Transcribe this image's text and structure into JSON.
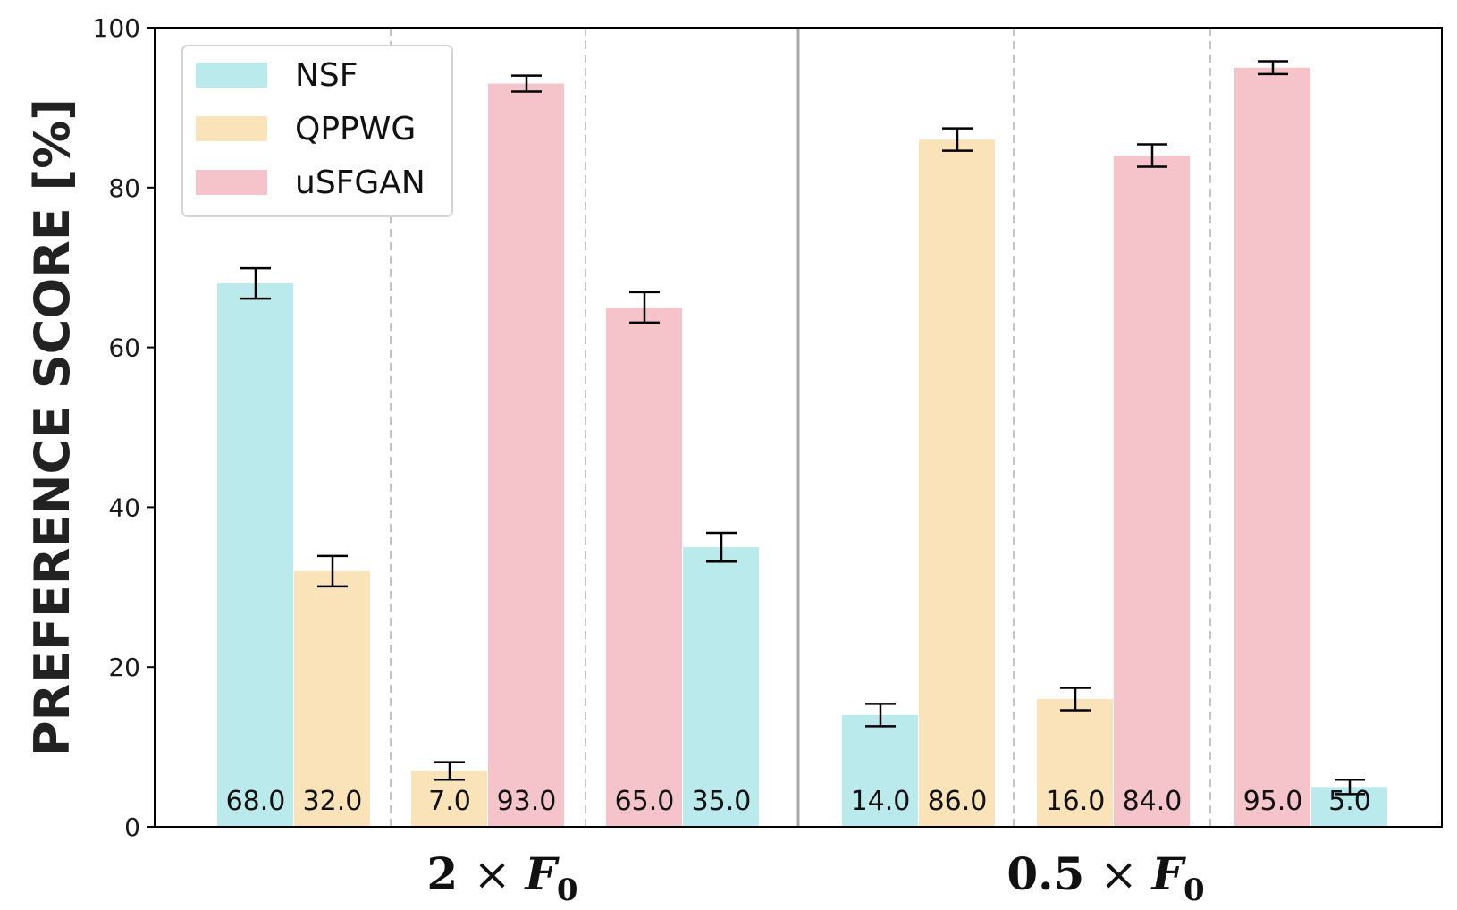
{
  "chart_data": {
    "type": "bar",
    "ylabel": "PREFERENCE SCORE [%]",
    "ylim": [
      0,
      100
    ],
    "yticks": [
      "0",
      "20",
      "40",
      "60",
      "80",
      "100"
    ],
    "grid": false,
    "legend": {
      "placement": "top-left",
      "entries": [
        {
          "name": "NSF",
          "color": "#bbeaec"
        },
        {
          "name": "QPPWG",
          "color": "#fae2b9"
        },
        {
          "name": "uSFGAN",
          "color": "#f5c3ca"
        }
      ]
    },
    "groups": [
      {
        "label_main": "2",
        "label_op": "×",
        "label_var": "F",
        "label_sub": "0",
        "comparisons": [
          {
            "bars": [
              {
                "series": "NSF",
                "value": 68.0,
                "err": 1.9,
                "label": "68.0"
              },
              {
                "series": "QPPWG",
                "value": 32.0,
                "err": 1.9,
                "label": "32.0"
              }
            ]
          },
          {
            "bars": [
              {
                "series": "QPPWG",
                "value": 7.0,
                "err": 1.1,
                "label": "7.0"
              },
              {
                "series": "uSFGAN",
                "value": 93.0,
                "err": 1.0,
                "label": "93.0"
              }
            ]
          },
          {
            "bars": [
              {
                "series": "uSFGAN",
                "value": 65.0,
                "err": 1.9,
                "label": "65.0"
              },
              {
                "series": "NSF",
                "value": 35.0,
                "err": 1.8,
                "label": "35.0"
              }
            ]
          }
        ]
      },
      {
        "label_main": "0.5",
        "label_op": "×",
        "label_var": "F",
        "label_sub": "0",
        "comparisons": [
          {
            "bars": [
              {
                "series": "NSF",
                "value": 14.0,
                "err": 1.4,
                "label": "14.0"
              },
              {
                "series": "QPPWG",
                "value": 86.0,
                "err": 1.4,
                "label": "86.0"
              }
            ]
          },
          {
            "bars": [
              {
                "series": "QPPWG",
                "value": 16.0,
                "err": 1.4,
                "label": "16.0"
              },
              {
                "series": "uSFGAN",
                "value": 84.0,
                "err": 1.4,
                "label": "84.0"
              }
            ]
          },
          {
            "bars": [
              {
                "series": "uSFGAN",
                "value": 95.0,
                "err": 0.8,
                "label": "95.0"
              },
              {
                "series": "NSF",
                "value": 5.0,
                "err": 0.9,
                "label": "5.0"
              }
            ]
          }
        ]
      }
    ]
  }
}
